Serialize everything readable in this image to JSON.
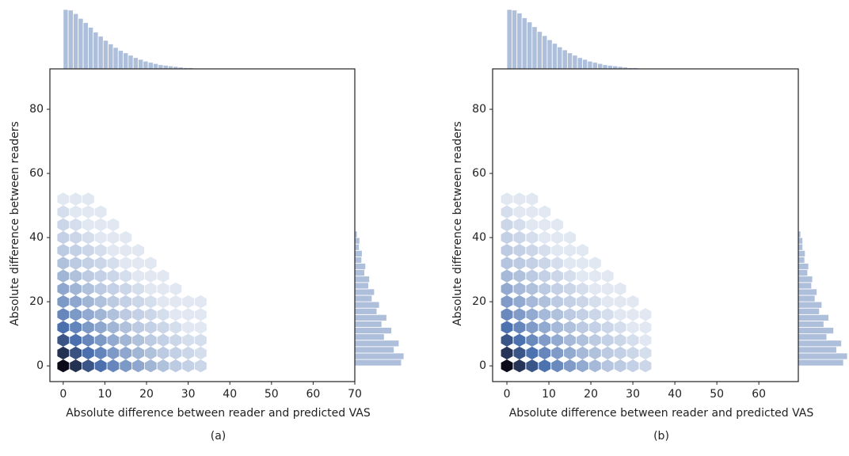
{
  "chart_data": [
    {
      "type": "hexbin",
      "caption": "(a)",
      "xlabel": "Absolute difference between reader and predicted VAS",
      "ylabel": "Absolute difference between readers",
      "xlim": [
        -3.2,
        70
      ],
      "ylim": [
        -4.9,
        92.6
      ],
      "xticks": [
        0,
        10,
        20,
        30,
        40,
        50,
        60,
        70
      ],
      "yticks": [
        0,
        20,
        40,
        60,
        80
      ],
      "color": "#4c72b0",
      "hex_x": [
        0,
        3,
        6,
        9,
        12,
        15,
        18,
        21,
        24,
        27,
        30,
        33
      ],
      "hex_y": [
        0,
        4,
        8,
        12,
        16,
        20,
        24,
        28,
        32,
        36,
        40,
        44,
        48,
        52
      ],
      "counts": [
        [
          100,
          72,
          51,
          37,
          26,
          19,
          14,
          10,
          7,
          5,
          4,
          3
        ],
        [
          72,
          52,
          37,
          27,
          19,
          14,
          10,
          7,
          5,
          4,
          3,
          2
        ],
        [
          51,
          37,
          26,
          19,
          13,
          10,
          7,
          5,
          4,
          3,
          2,
          2
        ],
        [
          37,
          27,
          19,
          14,
          10,
          7,
          5,
          4,
          3,
          2,
          1,
          1
        ],
        [
          26,
          19,
          13,
          10,
          7,
          5,
          4,
          3,
          2,
          1,
          1,
          1
        ],
        [
          19,
          14,
          10,
          7,
          5,
          4,
          3,
          2,
          1,
          1,
          1,
          1
        ],
        [
          14,
          10,
          7,
          5,
          4,
          3,
          2,
          1,
          1,
          1,
          0,
          0
        ],
        [
          10,
          7,
          5,
          4,
          3,
          2,
          1,
          1,
          1,
          0,
          0,
          0
        ],
        [
          7,
          5,
          4,
          3,
          2,
          1,
          1,
          1,
          0,
          0,
          0,
          0
        ],
        [
          5,
          4,
          3,
          2,
          1,
          1,
          1,
          0,
          0,
          0,
          0,
          0
        ],
        [
          4,
          3,
          2,
          1,
          1,
          1,
          0,
          0,
          0,
          0,
          0,
          0
        ],
        [
          3,
          2,
          1,
          1,
          1,
          0,
          0,
          0,
          0,
          0,
          0,
          0
        ],
        [
          2,
          1,
          1,
          1,
          0,
          0,
          0,
          0,
          0,
          0,
          0,
          0
        ],
        [
          1,
          1,
          1,
          0,
          0,
          0,
          0,
          0,
          0,
          0,
          0,
          0
        ]
      ],
      "top_bins": [
        0,
        1.2,
        2.4,
        3.6,
        4.8,
        6,
        7.2,
        8.4,
        9.6,
        10.8,
        12,
        13.2,
        14.4,
        15.6,
        16.8,
        18,
        19.2,
        20.4,
        21.6,
        22.8,
        24,
        25.2,
        26.4,
        27.6,
        28.8,
        30,
        31.2,
        32.4,
        33.6
      ],
      "top_counts": [
        100,
        99,
        93,
        85,
        78,
        70,
        62,
        55,
        48,
        42,
        36,
        31,
        27,
        23,
        19,
        16,
        13,
        11,
        9,
        7,
        6,
        5,
        4,
        3,
        2,
        2,
        1,
        1
      ],
      "right_bins": [
        0,
        2,
        4,
        6,
        8,
        10,
        12,
        14,
        16,
        18,
        20,
        22,
        24,
        26,
        28,
        30,
        32,
        34,
        36,
        38,
        40,
        42
      ],
      "right_counts": [
        95,
        100,
        80,
        90,
        60,
        75,
        55,
        65,
        45,
        50,
        35,
        40,
        28,
        30,
        20,
        22,
        14,
        15,
        9,
        10,
        5
      ]
    },
    {
      "type": "hexbin",
      "caption": "(b)",
      "xlabel": "Absolute difference between reader and predicted VAS",
      "ylabel": "Absolute difference between readers",
      "xlim": [
        -3.4,
        69.4
      ],
      "ylim": [
        -4.9,
        92.6
      ],
      "xticks": [
        0,
        10,
        20,
        30,
        40,
        50,
        60
      ],
      "yticks": [
        0,
        20,
        40,
        60,
        80
      ],
      "color": "#4c72b0",
      "hex_x": [
        0,
        3,
        6,
        9,
        12,
        15,
        18,
        21,
        24,
        27,
        30,
        33
      ],
      "hex_y": [
        0,
        4,
        8,
        12,
        16,
        20,
        24,
        28,
        32,
        36,
        40,
        44,
        48,
        52
      ],
      "counts": [
        [
          100,
          70,
          50,
          36,
          25,
          18,
          13,
          9,
          6,
          5,
          4,
          3
        ],
        [
          70,
          50,
          36,
          26,
          18,
          13,
          9,
          7,
          5,
          4,
          3,
          2
        ],
        [
          50,
          36,
          25,
          18,
          13,
          9,
          7,
          5,
          4,
          3,
          2,
          1
        ],
        [
          36,
          26,
          18,
          13,
          9,
          7,
          5,
          4,
          3,
          2,
          1,
          1
        ],
        [
          25,
          18,
          13,
          9,
          7,
          5,
          4,
          3,
          2,
          1,
          1,
          1
        ],
        [
          18,
          13,
          9,
          7,
          5,
          4,
          3,
          2,
          1,
          1,
          1,
          0
        ],
        [
          13,
          9,
          7,
          5,
          4,
          3,
          2,
          1,
          1,
          1,
          0,
          0
        ],
        [
          9,
          7,
          5,
          4,
          3,
          2,
          1,
          1,
          1,
          0,
          0,
          0
        ],
        [
          6,
          5,
          4,
          3,
          2,
          1,
          1,
          1,
          0,
          0,
          0,
          0
        ],
        [
          5,
          4,
          3,
          2,
          1,
          1,
          1,
          0,
          0,
          0,
          0,
          0
        ],
        [
          4,
          3,
          2,
          1,
          1,
          1,
          0,
          0,
          0,
          0,
          0,
          0
        ],
        [
          3,
          2,
          1,
          1,
          1,
          0,
          0,
          0,
          0,
          0,
          0,
          0
        ],
        [
          2,
          1,
          1,
          1,
          0,
          0,
          0,
          0,
          0,
          0,
          0,
          0
        ],
        [
          1,
          1,
          1,
          0,
          0,
          0,
          0,
          0,
          0,
          0,
          0,
          0
        ]
      ],
      "top_bins": [
        0,
        1.2,
        2.4,
        3.6,
        4.8,
        6,
        7.2,
        8.4,
        9.6,
        10.8,
        12,
        13.2,
        14.4,
        15.6,
        16.8,
        18,
        19.2,
        20.4,
        21.6,
        22.8,
        24,
        25.2,
        26.4,
        27.6,
        28.8,
        30,
        31.2,
        32.4,
        33.6
      ],
      "top_counts": [
        100,
        99,
        94,
        86,
        79,
        71,
        63,
        56,
        49,
        43,
        37,
        32,
        27,
        23,
        19,
        16,
        13,
        11,
        9,
        7,
        6,
        5,
        4,
        3,
        2,
        2,
        1,
        1
      ],
      "right_bins": [
        0,
        2,
        4,
        6,
        8,
        10,
        12,
        14,
        16,
        18,
        20,
        22,
        24,
        26,
        28,
        30,
        32,
        34,
        36,
        38,
        40,
        42
      ],
      "right_counts": [
        92,
        100,
        78,
        88,
        58,
        72,
        52,
        62,
        43,
        48,
        34,
        38,
        27,
        29,
        19,
        21,
        13,
        14,
        9,
        9,
        5
      ]
    }
  ]
}
